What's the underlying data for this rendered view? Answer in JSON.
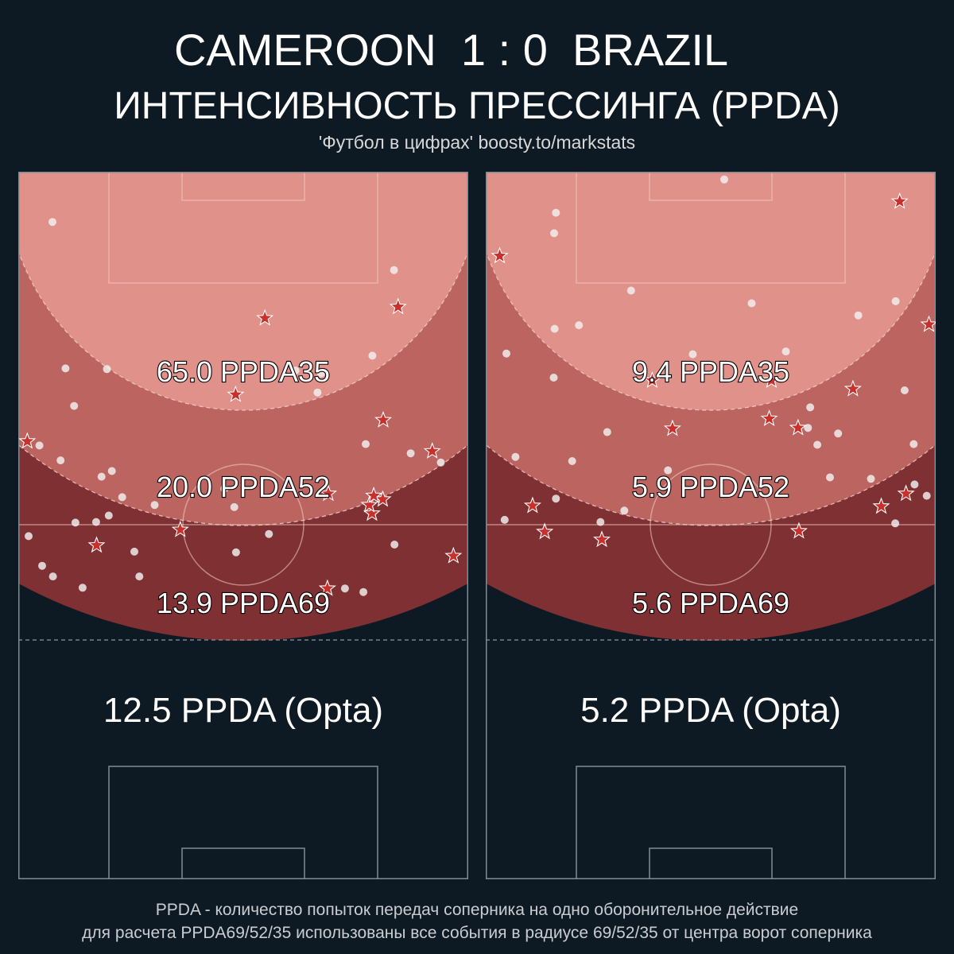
{
  "header": {
    "match_title": "CAMEROON  1 : 0  BRAZIL",
    "chart_title": "ИНТЕНСИВНОСТЬ ПРЕССИНГА (PPDA)",
    "subtitle": "'Футбол в цифрах' boosty.to/markstats"
  },
  "footer": {
    "line1": "PPDA - количество попыток передач соперника на одно оборонительное действие",
    "line2": "для расчета PPDA69/52/35 использованы все события в радиусе 69/52/35 от центра ворот соперника"
  },
  "colors": {
    "background": "#0e1a23",
    "zone35": "#e0918a",
    "zone52": "#bb6460",
    "zone69": "#7e3032",
    "star": "#c9302c",
    "dot": "#f2f2f2"
  },
  "chart_data": [
    {
      "type": "scatter",
      "team": "CAMEROON",
      "labels": {
        "ppda35": "65.0 PPDA35",
        "ppda52": "20.0 PPDA52",
        "ppda69": "13.9 PPDA69",
        "opta": "12.5 PPDA (Opta)"
      },
      "values": {
        "ppda35": 65.0,
        "ppda52": 20.0,
        "ppda69": 13.9,
        "opta": 12.5
      },
      "defensive_actions": [
        [
          7.6,
          92.9
        ],
        [
          83.5,
          86.1
        ],
        [
          78.7,
          74.0
        ],
        [
          10.5,
          72.2
        ],
        [
          67.3,
          71.5
        ],
        [
          61.6,
          71.9
        ],
        [
          19.7,
          72.1
        ],
        [
          66.5,
          68.8
        ],
        [
          12.4,
          66.9
        ],
        [
          4.7,
          61.3
        ],
        [
          9.4,
          59.2
        ],
        [
          87.2,
          60.2
        ],
        [
          93.9,
          58.9
        ],
        [
          77.2,
          61.5
        ],
        [
          20.8,
          57.7
        ],
        [
          45.8,
          55.2
        ],
        [
          48.0,
          52.6
        ],
        [
          2.3,
          48.5
        ],
        [
          18.5,
          56.9
        ],
        [
          23.1,
          54.0
        ],
        [
          20.1,
          51.4
        ],
        [
          17.3,
          50.5
        ],
        [
          30.3,
          52.9
        ],
        [
          55.7,
          48.8
        ],
        [
          83.6,
          47.3
        ],
        [
          5.3,
          44.3
        ],
        [
          26.9,
          42.8
        ],
        [
          14.3,
          41.2
        ],
        [
          7.7,
          42.8
        ],
        [
          12.7,
          50.4
        ],
        [
          25.8,
          46.3
        ],
        [
          72.6,
          41.1
        ],
        [
          76.7,
          40.6
        ],
        [
          48.4,
          46.2
        ]
      ],
      "successful_actions": [
        [
          48.3,
          68.5
        ],
        [
          81.0,
          53.7
        ],
        [
          68.7,
          41.1
        ],
        [
          78.6,
          51.7
        ],
        [
          78.0,
          52.9
        ],
        [
          96.7,
          45.7
        ],
        [
          81.1,
          64.9
        ],
        [
          2.0,
          61.9
        ],
        [
          54.8,
          79.3
        ],
        [
          84.4,
          80.9
        ],
        [
          68.9,
          54.5
        ],
        [
          92.0,
          60.5
        ],
        [
          17.4,
          47.2
        ],
        [
          36.0,
          49.4
        ],
        [
          79.0,
          54.2
        ]
      ]
    },
    {
      "type": "scatter",
      "team": "BRAZIL",
      "labels": {
        "ppda35": "9.4 PPDA35",
        "ppda52": "5.9 PPDA52",
        "ppda69": "5.6 PPDA69",
        "opta": "5.2 PPDA (Opta)"
      },
      "values": {
        "ppda35": 9.4,
        "ppda52": 5.9,
        "ppda69": 5.6,
        "opta": 5.2
      },
      "defensive_actions": [
        [
          53.0,
          98.9
        ],
        [
          15.6,
          94.2
        ],
        [
          15.2,
          91.3
        ],
        [
          32.3,
          83.2
        ],
        [
          59.1,
          81.4
        ],
        [
          91.1,
          81.7
        ],
        [
          82.8,
          79.7
        ],
        [
          15.3,
          77.8
        ],
        [
          20.7,
          78.3
        ],
        [
          4.6,
          74.3
        ],
        [
          46.0,
          74.2
        ],
        [
          66.7,
          74.6
        ],
        [
          15.1,
          70.9
        ],
        [
          27.0,
          63.2
        ],
        [
          93.1,
          69.1
        ],
        [
          72.1,
          66.7
        ],
        [
          71.6,
          63.8
        ],
        [
          73.7,
          61.4
        ],
        [
          78.3,
          63.0
        ],
        [
          95.1,
          61.5
        ],
        [
          40.5,
          57.8
        ],
        [
          6.6,
          59.7
        ],
        [
          19.2,
          59.1
        ],
        [
          76.5,
          56.8
        ],
        [
          85.6,
          56.6
        ],
        [
          95.3,
          55.8
        ],
        [
          98.0,
          54.2
        ],
        [
          15.6,
          53.8
        ],
        [
          30.8,
          52.1
        ],
        [
          4.2,
          50.8
        ],
        [
          25.5,
          50.5
        ],
        [
          91.0,
          50.3
        ]
      ],
      "successful_actions": [
        [
          92.0,
          95.8
        ],
        [
          3.1,
          88.1
        ],
        [
          98.5,
          78.4
        ],
        [
          37.0,
          70.5
        ],
        [
          81.6,
          69.3
        ],
        [
          41.5,
          63.7
        ],
        [
          63.0,
          65.1
        ],
        [
          63.5,
          70.5
        ],
        [
          69.4,
          63.8
        ],
        [
          10.4,
          52.8
        ],
        [
          13.1,
          49.1
        ],
        [
          25.8,
          48.0
        ],
        [
          69.6,
          49.2
        ],
        [
          93.4,
          54.5
        ],
        [
          87.9,
          52.7
        ]
      ]
    }
  ]
}
